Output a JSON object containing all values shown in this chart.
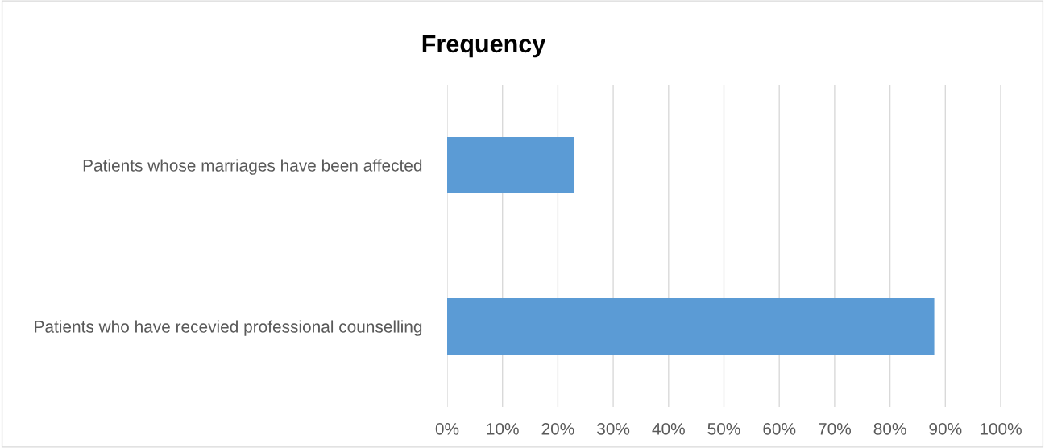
{
  "chart_data": {
    "type": "bar",
    "orientation": "horizontal",
    "title": "Frequency",
    "categories": [
      "Patients whose marriages have been affected",
      "Patients who have recevied professional counselling"
    ],
    "values": [
      23,
      88
    ],
    "color": "#5b9bd5",
    "xlim": [
      0,
      100
    ],
    "xticks": [
      {
        "value": 0,
        "label": "0%"
      },
      {
        "value": 10,
        "label": "10%"
      },
      {
        "value": 20,
        "label": "20%"
      },
      {
        "value": 30,
        "label": "30%"
      },
      {
        "value": 40,
        "label": "40%"
      },
      {
        "value": 50,
        "label": "50%"
      },
      {
        "value": 60,
        "label": "60%"
      },
      {
        "value": 70,
        "label": "70%"
      },
      {
        "value": 80,
        "label": "80%"
      },
      {
        "value": 90,
        "label": "90%"
      },
      {
        "value": 100,
        "label": "100%"
      }
    ],
    "grid": "x"
  }
}
